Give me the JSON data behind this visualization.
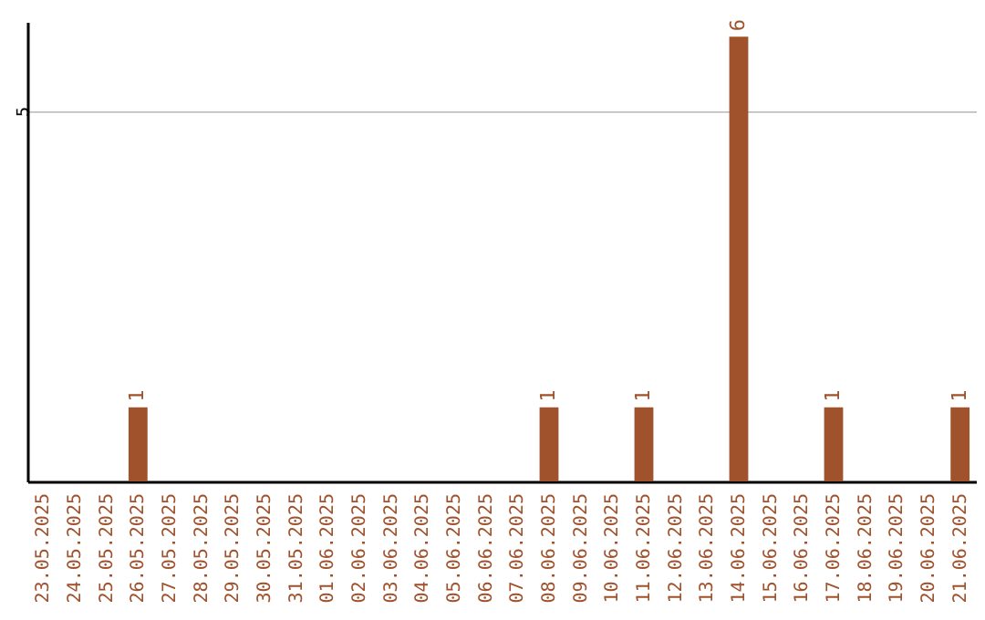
{
  "chart_data": {
    "type": "bar",
    "categories": [
      "23.05.2025",
      "24.05.2025",
      "25.05.2025",
      "26.05.2025",
      "27.05.2025",
      "28.05.2025",
      "29.05.2025",
      "30.05.2025",
      "31.05.2025",
      "01.06.2025",
      "02.06.2025",
      "03.06.2025",
      "04.06.2025",
      "05.06.2025",
      "06.06.2025",
      "07.06.2025",
      "08.06.2025",
      "09.06.2025",
      "10.06.2025",
      "11.06.2025",
      "12.06.2025",
      "13.06.2025",
      "14.06.2025",
      "15.06.2025",
      "16.06.2025",
      "17.06.2025",
      "18.06.2025",
      "19.06.2025",
      "20.06.2025",
      "21.06.2025"
    ],
    "values": [
      0,
      0,
      0,
      1,
      0,
      0,
      0,
      0,
      0,
      0,
      0,
      0,
      0,
      0,
      0,
      0,
      1,
      0,
      0,
      1,
      0,
      0,
      6,
      0,
      0,
      1,
      0,
      0,
      0,
      1
    ],
    "value_labels": [
      null,
      null,
      null,
      "1",
      null,
      null,
      null,
      null,
      null,
      null,
      null,
      null,
      null,
      null,
      null,
      null,
      "1",
      null,
      null,
      "1",
      null,
      null,
      "6",
      null,
      null,
      "1",
      null,
      null,
      null,
      "1"
    ],
    "color": "#a0522d",
    "ylim": [
      0,
      6.2
    ],
    "yticks": [
      5
    ],
    "grid": "y"
  }
}
